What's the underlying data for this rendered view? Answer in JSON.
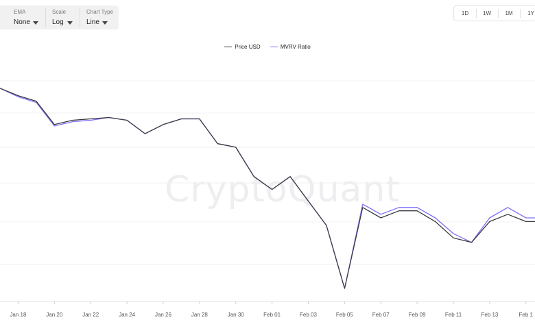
{
  "controls": {
    "ema": {
      "label": "EMA",
      "value": "None"
    },
    "scale": {
      "label": "Scale",
      "value": "Log"
    },
    "chart_type": {
      "label": "Chart Type",
      "value": "Line"
    }
  },
  "ranges": [
    "1D",
    "1W",
    "1M",
    "1Y"
  ],
  "watermark": "CryptoQuant",
  "colors": {
    "price": "#3a3a3f",
    "mvrv": "#7b6ef6",
    "grid": "#f0f0f0"
  },
  "chart_data": {
    "type": "line",
    "x_tick_labels": [
      "Jan 18",
      "Jan 20",
      "Jan 22",
      "Jan 24",
      "Jan 26",
      "Jan 28",
      "Jan 30",
      "Feb 01",
      "Feb 03",
      "Feb 05",
      "Feb 07",
      "Feb 09",
      "Feb 11",
      "Feb 13",
      "Feb 1"
    ],
    "x": [
      0,
      1,
      2,
      3,
      4,
      5,
      6,
      7,
      8,
      9,
      10,
      11,
      12,
      13,
      14,
      15,
      16,
      17,
      18,
      19,
      20,
      21,
      22,
      23,
      24,
      25,
      26,
      27,
      28,
      29,
      30
    ],
    "x_range": [
      0,
      29.5
    ],
    "y_scale": "log",
    "y_range_note": "no y-axis labels shown; values are relative (normalized, start = 100)",
    "ylim": [
      13,
      115
    ],
    "legend_position": "top-center",
    "grid": true,
    "series": [
      {
        "name": "Price USD",
        "values": [
          100,
          93,
          88,
          70,
          73,
          74,
          75,
          73,
          64,
          70,
          74,
          74,
          58,
          56,
          42,
          37,
          42,
          33,
          26,
          14,
          31,
          28,
          30,
          30,
          27,
          23,
          22,
          27,
          29,
          27,
          27
        ]
      },
      {
        "name": "MVRV Ratio",
        "values": [
          100,
          92,
          87,
          69,
          72,
          73,
          75,
          73,
          64,
          70,
          74,
          74,
          58,
          56,
          42,
          37,
          42,
          33,
          26,
          14,
          32,
          29,
          31,
          31,
          28,
          24,
          22,
          28,
          31,
          28,
          28
        ]
      }
    ]
  }
}
